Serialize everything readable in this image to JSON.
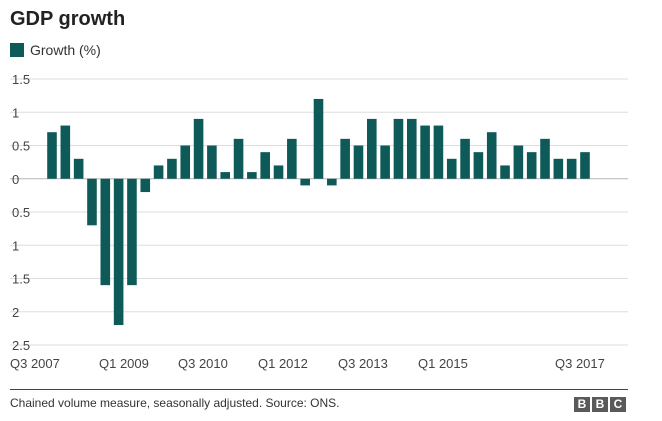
{
  "title": "GDP growth",
  "legend": {
    "label": "Growth (%)",
    "color": "#0e5a58"
  },
  "source": "Chained volume measure, seasonally adjusted. Source: ONS.",
  "logo": [
    "B",
    "B",
    "C"
  ],
  "chart_data": {
    "type": "bar",
    "title": "GDP growth",
    "xlabel": "",
    "ylabel": "",
    "ylim": [
      -2.5,
      1.5
    ],
    "yticks": [
      1.5,
      1,
      0.5,
      0,
      -0.5,
      -1,
      -1.5,
      -2,
      -2.5
    ],
    "ytick_labels": [
      "1.5",
      "1",
      "0.5",
      "0",
      "0.5",
      "1",
      "1.5",
      "2",
      "2.5"
    ],
    "grid": true,
    "legend_position": "top-left",
    "bar_color": "#0e5a58",
    "categories": [
      "Q3 2007",
      "Q4 2007",
      "Q1 2008",
      "Q2 2008",
      "Q3 2008",
      "Q4 2008",
      "Q1 2009",
      "Q2 2009",
      "Q3 2009",
      "Q4 2009",
      "Q1 2010",
      "Q2 2010",
      "Q3 2010",
      "Q4 2010",
      "Q1 2011",
      "Q2 2011",
      "Q3 2011",
      "Q4 2011",
      "Q1 2012",
      "Q2 2012",
      "Q3 2012",
      "Q4 2012",
      "Q1 2013",
      "Q2 2013",
      "Q3 2013",
      "Q4 2013",
      "Q1 2014",
      "Q2 2014",
      "Q3 2014",
      "Q4 2014",
      "Q1 2015",
      "Q2 2015",
      "Q3 2015",
      "Q4 2015",
      "Q1 2016",
      "Q2 2016",
      "Q3 2016",
      "Q4 2016",
      "Q1 2017",
      "Q2 2017",
      "Q3 2017"
    ],
    "xtick_labels": [
      "Q3 2007",
      "Q1 2009",
      "Q3 2010",
      "Q1 2012",
      "Q3 2013",
      "Q1 2015",
      "Q3 2017"
    ],
    "series": [
      {
        "values": [
          0.7,
          0.8,
          0.3,
          -0.7,
          -1.6,
          -2.2,
          -1.6,
          -0.2,
          0.2,
          0.3,
          0.5,
          0.9,
          0.5,
          0.1,
          0.6,
          0.1,
          0.4,
          0.2,
          0.6,
          -0.1,
          1.2,
          -0.1,
          0.6,
          0.5,
          0.9,
          0.5,
          0.9,
          0.9,
          0.8,
          0.8,
          0.3,
          0.6,
          0.4,
          0.7,
          0.2,
          0.5,
          0.4,
          0.6,
          0.3,
          0.3,
          0.4
        ]
      }
    ]
  }
}
